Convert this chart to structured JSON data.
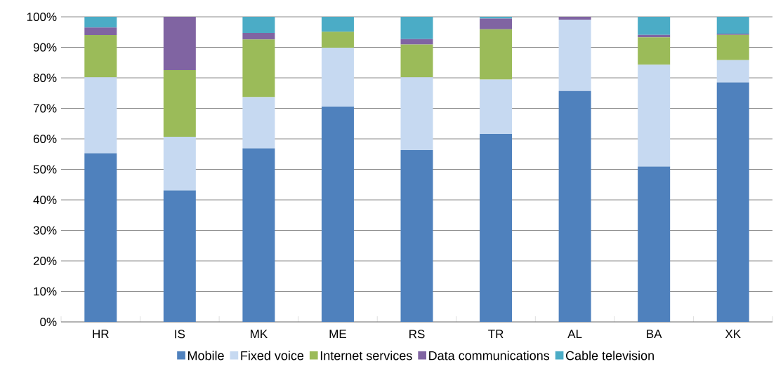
{
  "chart_data": {
    "type": "bar",
    "stacked": true,
    "categories": [
      "HR",
      "IS",
      "MK",
      "ME",
      "RS",
      "TR",
      "AL",
      "BA",
      "XK"
    ],
    "series": [
      {
        "name": "Mobile",
        "color": "#4f81bd",
        "values": [
          55.3,
          43.1,
          56.9,
          70.6,
          56.3,
          61.6,
          75.7,
          50.9,
          78.5
        ]
      },
      {
        "name": "Fixed voice",
        "color": "#c6d9f1",
        "values": [
          24.9,
          17.6,
          16.8,
          19.3,
          23.9,
          17.8,
          23.4,
          33.4,
          7.3
        ]
      },
      {
        "name": "Internet services",
        "color": "#9bbb59",
        "values": [
          13.8,
          21.8,
          18.9,
          5.2,
          10.7,
          16.5,
          0,
          9.0,
          8.3
        ]
      },
      {
        "name": "Data communications",
        "color": "#8064a2",
        "values": [
          2.5,
          17.5,
          2.1,
          0,
          1.8,
          3.5,
          0.9,
          0.8,
          0.4
        ]
      },
      {
        "name": "Cable television",
        "color": "#4bacc6",
        "values": [
          3.5,
          0,
          5.3,
          4.9,
          7.3,
          0.6,
          0,
          5.9,
          5.5
        ]
      }
    ],
    "ylim": [
      0,
      100
    ],
    "yticks": [
      {
        "value": 0,
        "label": "0%"
      },
      {
        "value": 10,
        "label": "10%"
      },
      {
        "value": 20,
        "label": "20%"
      },
      {
        "value": 30,
        "label": "30%"
      },
      {
        "value": 40,
        "label": "40%"
      },
      {
        "value": 50,
        "label": "50%"
      },
      {
        "value": 60,
        "label": "60%"
      },
      {
        "value": 70,
        "label": "70%"
      },
      {
        "value": 80,
        "label": "80%"
      },
      {
        "value": 90,
        "label": "90%"
      },
      {
        "value": 100,
        "label": "100%"
      }
    ],
    "grid": "y",
    "legend": "bottom"
  }
}
